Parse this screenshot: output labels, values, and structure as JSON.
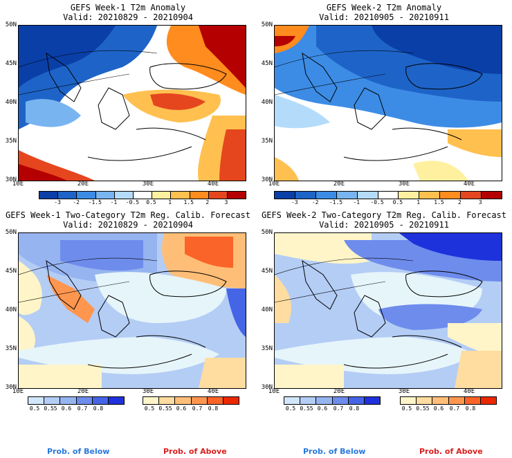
{
  "panels": [
    {
      "title": "GEFS Week-1 T2m Anomaly",
      "valid": "Valid: 20210829 - 20210904"
    },
    {
      "title": "GEFS Week-2 T2m Anomaly",
      "valid": "Valid: 20210905 - 20210911"
    },
    {
      "title": "GEFS Week-1 Two-Category T2m Reg. Calib. Forecast",
      "valid": "Valid: 20210829 - 20210904"
    },
    {
      "title": "GEFS Week-2 Two-Category T2m Reg. Calib. Forecast",
      "valid": "Valid: 20210905 - 20210911"
    }
  ],
  "lat_labels": [
    "50N",
    "45N",
    "40N",
    "35N",
    "30N"
  ],
  "lon_labels": [
    "10E",
    "20E",
    "30E",
    "40E"
  ],
  "anomaly_scale": {
    "ticks": [
      "-3",
      "-2",
      "-1.5",
      "-1",
      "-0.5",
      "0.5",
      "1",
      "1.5",
      "2",
      "3"
    ],
    "colors": [
      "#0a3fa8",
      "#1e64c8",
      "#3c8ce6",
      "#78b4f0",
      "#b4dcfa",
      "#ffffff",
      "#fff0a0",
      "#ffc050",
      "#ff8c1e",
      "#e6461e",
      "#b40000"
    ]
  },
  "prob_scale": {
    "ticks": [
      "0.5",
      "0.55",
      "0.6",
      "0.7",
      "0.8"
    ],
    "below_colors": [
      "#d2e6fa",
      "#b4cdf5",
      "#96b4f0",
      "#6e8cec",
      "#4664e6",
      "#1e32dc"
    ],
    "above_colors": [
      "#fff5c8",
      "#ffdca0",
      "#ffbe78",
      "#ff9650",
      "#fa6428",
      "#eb2800"
    ]
  },
  "labels": {
    "below": "Prob. of Below",
    "above": "Prob. of Above"
  },
  "colors": {
    "below_label": "#2878dc",
    "above_label": "#dc1e1e",
    "sea_prob": "#e6f5fa"
  }
}
